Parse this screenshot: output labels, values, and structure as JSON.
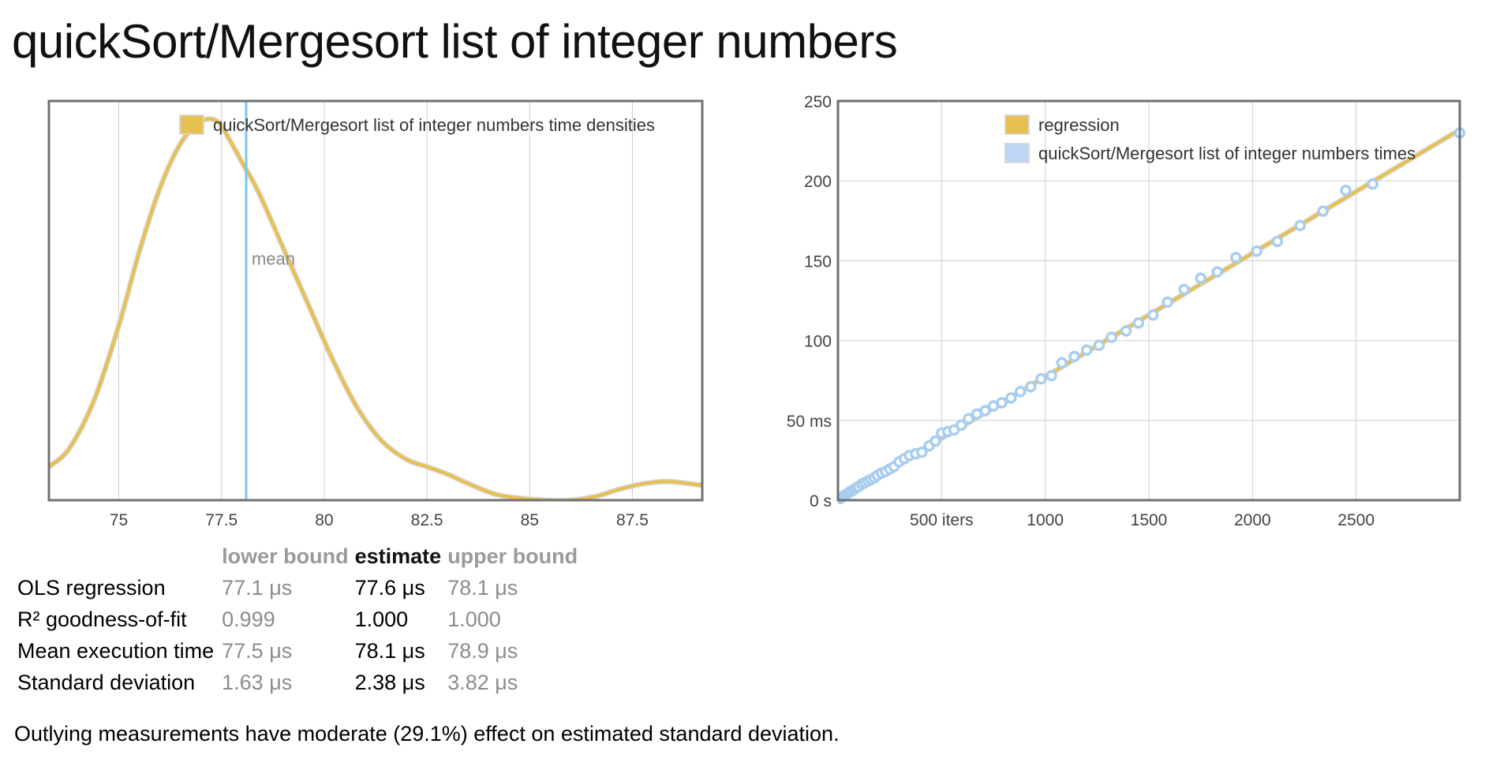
{
  "title": "quickSort/Mergesort list of integer numbers",
  "colors": {
    "density": "#e6c050",
    "density_border": "#c9a23a",
    "mean_line": "#7cc6ee",
    "points_fill": "#ffffff",
    "points_stroke": "#a9cdef",
    "regression": "#e6c050",
    "legend_times": "#bcd6f3",
    "grid": "#cfcfcf",
    "frame": "#707070"
  },
  "chart_data": [
    {
      "type": "line",
      "name": "density",
      "legend": "quickSort/Mergesort list of integer numbers time densities",
      "legend_position": "top-right",
      "mean_label": "mean",
      "mean": 78.1,
      "xlim": [
        73.3,
        89.2
      ],
      "ylim": [
        0,
        1
      ],
      "grid": true,
      "x_ticks": [
        75,
        77.5,
        80,
        82.5,
        85,
        87.5
      ],
      "x_tick_labels": [
        "75",
        "77.5",
        "80",
        "82.5",
        "85",
        "87.5"
      ],
      "x": [
        73.3,
        73.8,
        74.4,
        75.0,
        75.5,
        76.0,
        76.5,
        77.0,
        77.4,
        77.7,
        78.0,
        78.4,
        79.0,
        79.6,
        80.2,
        80.8,
        81.4,
        82.0,
        82.5,
        83.0,
        83.6,
        84.2,
        84.8,
        85.4,
        86.0,
        86.6,
        87.2,
        87.8,
        88.4,
        89.2
      ],
      "y": [
        0.09,
        0.14,
        0.27,
        0.47,
        0.67,
        0.84,
        0.96,
        1.02,
        1.02,
        0.97,
        0.91,
        0.83,
        0.68,
        0.53,
        0.38,
        0.25,
        0.16,
        0.11,
        0.09,
        0.07,
        0.04,
        0.015,
        0.005,
        0.0,
        0.0,
        0.01,
        0.03,
        0.045,
        0.05,
        0.04
      ]
    },
    {
      "type": "scatter",
      "name": "regression",
      "legend": [
        "regression",
        "quickSort/Mergesort list of integer numbers times"
      ],
      "legend_position": "top-right",
      "xlim": [
        0,
        3000
      ],
      "ylim": [
        0,
        250
      ],
      "grid": true,
      "x_ticks": [
        500,
        1000,
        1500,
        2000,
        2500
      ],
      "x_tick_labels": [
        "500 iters",
        "1000",
        "1500",
        "2000",
        "2500"
      ],
      "y_ticks": [
        0,
        50,
        100,
        150,
        200,
        250
      ],
      "y_tick_labels": [
        "0 s",
        "50 ms",
        "100",
        "150",
        "200",
        "250"
      ],
      "regression_line": {
        "x": [
          0,
          3000
        ],
        "y": [
          0,
          232
        ]
      },
      "points": {
        "x": [
          10,
          20,
          30,
          40,
          50,
          60,
          70,
          80,
          90,
          100,
          115,
          130,
          145,
          160,
          175,
          190,
          210,
          230,
          250,
          270,
          295,
          320,
          345,
          375,
          405,
          440,
          470,
          500,
          530,
          560,
          595,
          630,
          670,
          710,
          750,
          790,
          835,
          880,
          930,
          980,
          1030,
          1080,
          1140,
          1200,
          1260,
          1320,
          1390,
          1450,
          1520,
          1590,
          1670,
          1750,
          1830,
          1920,
          2020,
          2120,
          2230,
          2340,
          2450,
          2580,
          3000
        ],
        "y": [
          1,
          2,
          3,
          3.5,
          4.5,
          5.5,
          6,
          7,
          8,
          8.5,
          10,
          11,
          12,
          13,
          14,
          15.5,
          17,
          18,
          19.5,
          21,
          24,
          26,
          28,
          29,
          30,
          34,
          37,
          42,
          43,
          44,
          47,
          51,
          54,
          56,
          59,
          61,
          64,
          68,
          71,
          76,
          78,
          86,
          90,
          94,
          97,
          102,
          106,
          111,
          116,
          124,
          132,
          139,
          143,
          152,
          156,
          162,
          172,
          181,
          194,
          198,
          230
        ]
      }
    }
  ],
  "stats": {
    "headers": {
      "lower": "lower bound",
      "estimate": "estimate",
      "upper": "upper bound"
    },
    "rows": [
      {
        "label": "OLS regression",
        "lower": "77.1 μs",
        "estimate": "77.6 μs",
        "upper": "78.1 μs"
      },
      {
        "label": "R² goodness-of-fit",
        "lower": "0.999",
        "estimate": "1.000",
        "upper": "1.000"
      },
      {
        "label": "Mean execution time",
        "lower": "77.5 μs",
        "estimate": "78.1 μs",
        "upper": "78.9 μs"
      },
      {
        "label": "Standard deviation",
        "lower": "1.63 μs",
        "estimate": "2.38 μs",
        "upper": "3.82 μs"
      }
    ]
  },
  "outlier_note": "Outlying measurements have moderate (29.1%) effect on estimated standard deviation."
}
